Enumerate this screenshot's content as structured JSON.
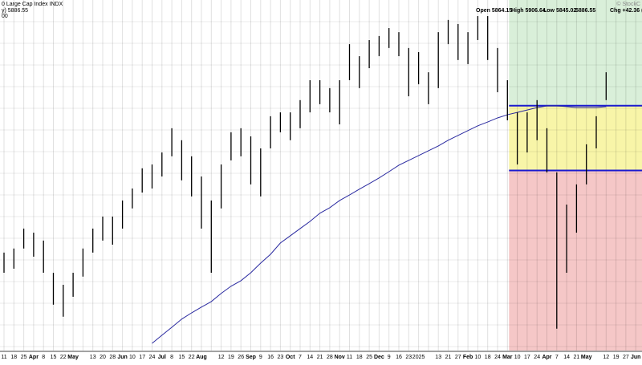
{
  "chart_data": {
    "type": "ohlc",
    "title": "0 Large Cap Index INDX",
    "header": [
      "Open 5864.15",
      "High 5906.64",
      "Low 5845.02",
      "5886.55",
      "Chg +42.36 (+"
    ],
    "legend_lines": [
      "y) 5886.55",
      "00"
    ],
    "watermark": "© StockC",
    "categories": [
      "11",
      "18",
      "25",
      "Apr",
      "8",
      "15",
      "22",
      "May",
      null,
      "13",
      "20",
      "28",
      "Jun",
      "10",
      "17",
      "24",
      "Jul",
      "8",
      "15",
      "22",
      "Aug",
      null,
      "12",
      "19",
      "26",
      "Sep",
      "9",
      "16",
      "23",
      "Oct",
      "7",
      "14",
      "21",
      "28",
      "Nov",
      "11",
      "18",
      "25",
      "Dec",
      "9",
      "16",
      "23",
      "2025",
      null,
      "13",
      "21",
      "27",
      "Feb",
      "10",
      "18",
      "24",
      "Mar",
      "10",
      "17",
      "24",
      "Apr",
      "7",
      "14",
      "21",
      "May",
      null,
      "12",
      "19",
      "27",
      "Jun"
    ],
    "high": [
      5148,
      5165,
      5248,
      5231,
      5198,
      5064,
      5014,
      5064,
      5165,
      5248,
      5298,
      5298,
      5365,
      5415,
      5499,
      5515,
      5565,
      5666,
      5616,
      5549,
      5465,
      5365,
      5515,
      5649,
      5666,
      5632,
      5582,
      5716,
      5732,
      5732,
      5783,
      5866,
      5866,
      5833,
      5866,
      6016,
      5966,
      6033,
      6050,
      6083,
      6066,
      6000,
      5983,
      5899,
      6066,
      6117,
      6100,
      6066,
      6133,
      6133,
      6000,
      5866,
      5732,
      5732,
      5783,
      5666,
      5482,
      5348,
      5432,
      5599,
      5716,
      5899,
      null,
      null,
      null
    ],
    "low": [
      5064,
      5081,
      5165,
      5131,
      5064,
      4931,
      4881,
      4964,
      5048,
      5148,
      5198,
      5181,
      5248,
      5332,
      5398,
      5415,
      5465,
      5549,
      5449,
      5382,
      5248,
      5064,
      5332,
      5532,
      5549,
      5432,
      5382,
      5582,
      5649,
      5616,
      5666,
      5732,
      5766,
      5732,
      5682,
      5866,
      5833,
      5916,
      5966,
      6000,
      5966,
      5799,
      5849,
      5766,
      5833,
      6016,
      5950,
      5933,
      6033,
      5950,
      5816,
      5699,
      5515,
      5565,
      5616,
      5482,
      4831,
      5064,
      5231,
      5432,
      5582,
      5783,
      null,
      null,
      null
    ],
    "ma": [
      null,
      null,
      null,
      null,
      null,
      null,
      null,
      null,
      null,
      null,
      null,
      null,
      null,
      null,
      null,
      4770,
      4804,
      4837,
      4871,
      4897,
      4921,
      4944,
      4978,
      5008,
      5031,
      5064,
      5104,
      5141,
      5188,
      5218,
      5248,
      5278,
      5312,
      5335,
      5365,
      5388,
      5412,
      5435,
      5459,
      5485,
      5512,
      5532,
      5552,
      5572,
      5592,
      5616,
      5636,
      5656,
      5676,
      5692,
      5709,
      5722,
      5732,
      5742,
      5752,
      5759,
      5759,
      5756,
      5752,
      5752,
      5752,
      5756,
      null,
      null,
      null
    ],
    "bar_color": "#000000",
    "ma_color": "#2a2aa0",
    "ylim": [
      4740,
      6200
    ],
    "shade_from": 51,
    "levels": [
      5760,
      5490
    ],
    "level_color": "#1a1ad0",
    "zones": [
      {
        "range": [
          5760,
          6200
        ],
        "color": "#d9efd9"
      },
      {
        "range": [
          5490,
          5760
        ],
        "color": "#f8f5a8"
      },
      {
        "range": [
          4740,
          5490
        ],
        "color": "#f5c7c7"
      }
    ],
    "grid": true
  }
}
